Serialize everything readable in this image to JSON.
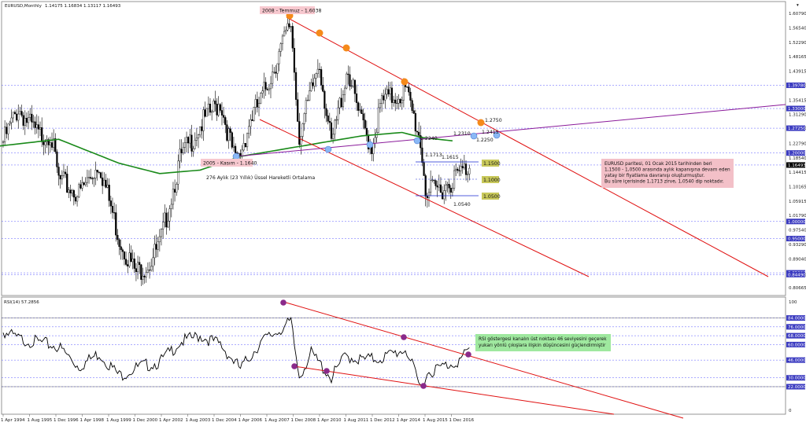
{
  "header": {
    "symbol": "EURUSD,Monthly",
    "ohlc": "1.14175 1.16834 1.13117 1.16493",
    "rsi": "RSI(14) 57.2856"
  },
  "colors": {
    "price": "#000000",
    "ema": "#1a8a1a",
    "channel": "#e01010",
    "purple": "#8a1a9a",
    "grid": "#5a5aff",
    "tag": "#f7c8cf",
    "box": "#f3c0c8",
    "rsi_box": "#9fe89f",
    "level": "#c8c85a"
  },
  "price_axis": {
    "ticks": [
      "1.60790",
      "1.56540",
      "1.52290",
      "1.48165",
      "1.43915",
      "1.39780",
      "1.35415",
      "1.31290",
      "1.27250",
      "1.22790",
      "1.18540",
      "1.14415",
      "1.10165",
      "1.05915",
      "1.01790",
      "0.97540",
      "0.93290",
      "0.89040",
      "0.84490",
      "0.80665"
    ],
    "highlight": [
      "1.39780",
      "1.33000",
      "1.27250",
      "1.20000",
      "1.16493",
      "1.00000",
      "0.95000",
      "0.85000",
      "0.84490"
    ]
  },
  "rsi_axis": {
    "ticks": [
      "100",
      "84.0000",
      "76.0000",
      "68.0000",
      "60.0000",
      "46.0000",
      "30.0000",
      "22.0000",
      "0"
    ]
  },
  "time_axis": [
    "1 Apr 1994",
    "1 Aug 1995",
    "1 Dec 1996",
    "1 Apr 1998",
    "1 Aug 1999",
    "1 Dec 2000",
    "1 Apr 2002",
    "1 Aug 2003",
    "1 Dec 2004",
    "1 Apr 2006",
    "1 Aug 2007",
    "1 Dec 2008",
    "1 Apr 2010",
    "1 Aug 2011",
    "1 Dec 2012",
    "1 Apr 2014",
    "1 Aug 2015",
    "1 Dec 2016"
  ],
  "annotations": {
    "peak_2008": "2008 - Temmuz - 1.6038",
    "low_2005": "2005 - Kasım - 1.1640",
    "ema_label": "276 Aylık (23 Yıllık) Üssel Hareketli Ortalama",
    "p12750": "1.2750",
    "p12310": "1.2310",
    "p12415": "1.2415",
    "p12250": "1.2250",
    "p12240": "1.2240",
    "p11713": "1.1713",
    "p11615": "1.1615",
    "p10540": "1.0540",
    "lvl_15": "1.1500",
    "lvl_10": "1.1000",
    "lvl_05": "1.0500"
  },
  "info_box": {
    "lines": [
      "EURUSD paritesi, 01 Ocak 2015 tarihinden beri",
      "1,1500 - 1,0500 arasında aylık kapanışına devam eden",
      "yatay bir fiyatlama davranışı oluşturmuştur.",
      "Bu süre içerisinde 1,1713 zirve, 1,0540 dip noktadır."
    ]
  },
  "rsi_box": {
    "lines": [
      "RSI göstergesi kanalın üst noktası 46 seviyesini geçerek",
      "yukarı yönlü çıkışlara ilişkin düşüncesini güçlendirmiştir"
    ]
  },
  "chart_data": {
    "type": "candlestick",
    "instrument": "EURUSD",
    "timeframe": "Monthly",
    "x_range": [
      "1994-04",
      "2017-06"
    ],
    "y_range": [
      0.80665,
      1.6079
    ],
    "price_series": {
      "x": [
        1994,
        1995,
        1995.6,
        1996,
        1996.6,
        1997,
        1998,
        1999,
        2000,
        2000.8,
        2001.5,
        2002,
        2003,
        2004,
        2005,
        2005.8,
        2006.5,
        2007,
        2008.5,
        2008.9,
        2009.3,
        2009.9,
        2010.5,
        2011.3,
        2011.9,
        2012.5,
        2013,
        2014.2,
        2014.9,
        2015.2,
        2016,
        2017.4
      ],
      "close": [
        1.2,
        1.33,
        1.28,
        1.25,
        1.26,
        1.12,
        1.08,
        1.17,
        0.95,
        0.85,
        0.88,
        0.93,
        1.18,
        1.28,
        1.35,
        1.16,
        1.3,
        1.35,
        1.58,
        1.25,
        1.33,
        1.47,
        1.22,
        1.45,
        1.3,
        1.22,
        1.35,
        1.38,
        1.24,
        1.08,
        1.1,
        1.165
      ]
    },
    "ema_276": {
      "x": [
        1994,
        1997,
        2000,
        2002,
        2004,
        2006,
        2008,
        2010,
        2012,
        2014,
        2015,
        2016.6
      ],
      "values": [
        1.22,
        1.24,
        1.17,
        1.14,
        1.15,
        1.19,
        1.21,
        1.23,
        1.25,
        1.26,
        1.245,
        1.235
      ]
    },
    "rsi": {
      "x": [
        1994,
        1995,
        1996,
        1997,
        1998,
        1999,
        2000,
        2001,
        2002,
        2003,
        2004,
        2005,
        2006,
        2007,
        2008.5,
        2008.9,
        2009.5,
        2010.5,
        2011.2,
        2012,
        2013,
        2014.2,
        2014.9,
        2015.3,
        2016,
        2016.9,
        2017.4
      ],
      "values": [
        74,
        65,
        62,
        58,
        40,
        52,
        32,
        40,
        44,
        62,
        68,
        60,
        38,
        62,
        80,
        31,
        52,
        30,
        50,
        46,
        48,
        56,
        21,
        35,
        40,
        46,
        57.3
      ]
    },
    "levels": [
      1.15,
      1.1,
      1.05
    ],
    "title": "",
    "xlabel": "",
    "ylabel": ""
  }
}
